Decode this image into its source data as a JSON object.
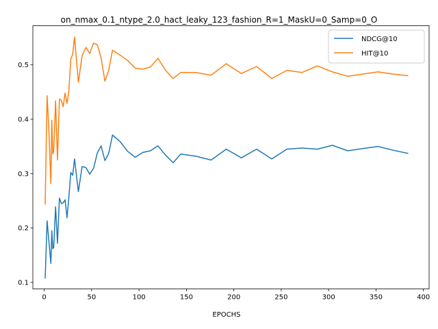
{
  "chart_data": {
    "type": "line",
    "title": "on_nmax_0.1_ntype_2.0_hact_leaky_123_fashion_R=1_MaskU=0_Samp=0_O",
    "xlabel": "EPOCHS",
    "ylabel": "",
    "xlim": [
      -12,
      406
    ],
    "ylim": [
      0.088,
      0.572
    ],
    "xticks": [
      0,
      50,
      100,
      150,
      200,
      250,
      300,
      350,
      400
    ],
    "yticks": [
      0.1,
      0.2,
      0.3,
      0.4,
      0.5
    ],
    "ytick_labels": [
      "0.1",
      "0.2",
      "0.3",
      "0.4",
      "0.5"
    ],
    "legend_position": "top-right",
    "series": [
      {
        "name": "NDCG@10",
        "color": "#1f77b4",
        "x": [
          1,
          3,
          5,
          7,
          8,
          9,
          10,
          12,
          14,
          16,
          18,
          20,
          22,
          24,
          26,
          28,
          30,
          32,
          36,
          40,
          44,
          48,
          52,
          56,
          60,
          64,
          68,
          72,
          80,
          88,
          96,
          104,
          112,
          120,
          128,
          136,
          144,
          160,
          176,
          192,
          208,
          224,
          240,
          256,
          272,
          288,
          304,
          320,
          336,
          352,
          368,
          384
        ],
        "y": [
          0.107,
          0.213,
          0.175,
          0.135,
          0.195,
          0.162,
          0.164,
          0.239,
          0.172,
          0.255,
          0.245,
          0.246,
          0.252,
          0.219,
          0.256,
          0.302,
          0.297,
          0.327,
          0.267,
          0.313,
          0.311,
          0.299,
          0.31,
          0.338,
          0.351,
          0.324,
          0.337,
          0.371,
          0.359,
          0.341,
          0.33,
          0.339,
          0.342,
          0.351,
          0.334,
          0.32,
          0.336,
          0.332,
          0.325,
          0.345,
          0.329,
          0.345,
          0.327,
          0.345,
          0.347,
          0.345,
          0.352,
          0.342,
          0.346,
          0.35,
          0.343,
          0.337
        ]
      },
      {
        "name": "HIT@10",
        "color": "#ff7f0e",
        "x": [
          1,
          3,
          5,
          7,
          8,
          9,
          10,
          12,
          14,
          16,
          18,
          20,
          22,
          24,
          26,
          28,
          30,
          32,
          36,
          40,
          44,
          48,
          52,
          56,
          60,
          64,
          68,
          72,
          80,
          88,
          96,
          104,
          112,
          120,
          128,
          136,
          144,
          160,
          176,
          192,
          208,
          224,
          240,
          256,
          272,
          288,
          304,
          320,
          336,
          352,
          368,
          384
        ],
        "y": [
          0.243,
          0.443,
          0.378,
          0.282,
          0.398,
          0.336,
          0.341,
          0.434,
          0.325,
          0.437,
          0.435,
          0.423,
          0.448,
          0.429,
          0.452,
          0.511,
          0.519,
          0.551,
          0.468,
          0.517,
          0.532,
          0.521,
          0.54,
          0.537,
          0.513,
          0.47,
          0.49,
          0.527,
          0.518,
          0.508,
          0.494,
          0.492,
          0.496,
          0.512,
          0.49,
          0.475,
          0.486,
          0.486,
          0.481,
          0.502,
          0.484,
          0.497,
          0.475,
          0.49,
          0.486,
          0.498,
          0.487,
          0.479,
          0.483,
          0.487,
          0.483,
          0.48
        ]
      }
    ]
  }
}
